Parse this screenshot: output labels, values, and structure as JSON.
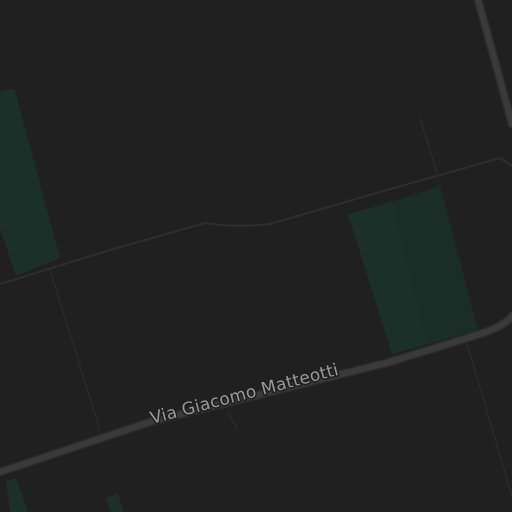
{
  "map": {
    "theme": "dark",
    "colors": {
      "background": "#202020",
      "field_boundary": "#2a2a2a",
      "track": "#2e2e2e",
      "road": "#3a3a3a",
      "road_edge": "#2c2c2c",
      "vegetation": "#1b3029",
      "vegetation_dark": "#1a2e27",
      "label_text": "#9a9a9a",
      "label_halo": "#1f1f1f"
    },
    "labels": {
      "main_road": "Via Giacomo Matteotti"
    }
  }
}
